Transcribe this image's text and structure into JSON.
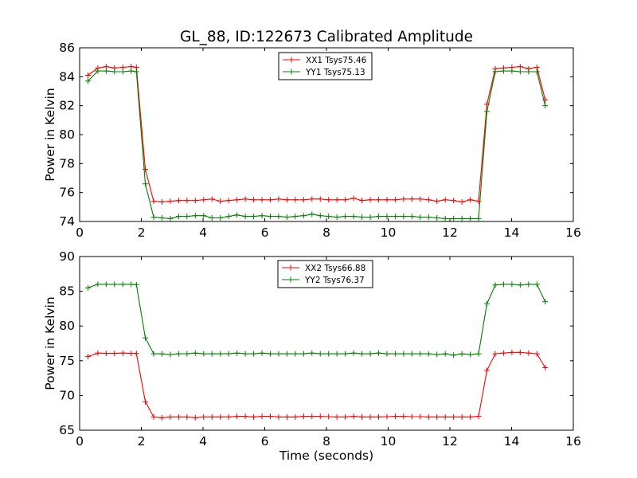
{
  "figure_title": "GL_88, ID:122673 Calibrated Amplitude",
  "chart_data": [
    {
      "type": "line",
      "xlabel": "",
      "ylabel": "Power in Kelvin",
      "xlim": [
        0,
        16
      ],
      "ylim": [
        74,
        86
      ],
      "xticks": [
        "0",
        "2",
        "4",
        "6",
        "8",
        "10",
        "12",
        "14",
        "16"
      ],
      "yticks": [
        "74",
        "76",
        "78",
        "80",
        "82",
        "84",
        "86"
      ],
      "grid": false,
      "legend_position": "top-center",
      "colors": {
        "XX1 Tsys75.46": "#ff0000",
        "YY1 Tsys75.13": "#008000"
      },
      "x": [
        0.27,
        0.59,
        0.86,
        1.13,
        1.4,
        1.67,
        1.84,
        2.13,
        2.4,
        2.67,
        2.94,
        3.21,
        3.48,
        3.75,
        4.02,
        4.29,
        4.56,
        4.83,
        5.1,
        5.37,
        5.64,
        5.91,
        6.18,
        6.45,
        6.72,
        6.99,
        7.26,
        7.53,
        7.8,
        8.07,
        8.34,
        8.61,
        8.88,
        9.15,
        9.42,
        9.69,
        9.96,
        10.23,
        10.5,
        10.77,
        11.04,
        11.31,
        11.58,
        11.85,
        12.12,
        12.39,
        12.66,
        12.93,
        13.2,
        13.47,
        13.74,
        14.01,
        14.28,
        14.55,
        14.82,
        15.09
      ],
      "series": [
        {
          "name": "XX1 Tsys75.46",
          "values": [
            84.1,
            84.6,
            84.7,
            84.6,
            84.65,
            84.7,
            84.65,
            77.6,
            75.4,
            75.35,
            75.4,
            75.45,
            75.45,
            75.45,
            75.5,
            75.55,
            75.4,
            75.45,
            75.5,
            75.55,
            75.5,
            75.5,
            75.5,
            75.55,
            75.5,
            75.5,
            75.5,
            75.55,
            75.55,
            75.5,
            75.5,
            75.5,
            75.6,
            75.45,
            75.5,
            75.5,
            75.5,
            75.5,
            75.55,
            75.55,
            75.55,
            75.5,
            75.4,
            75.5,
            75.45,
            75.35,
            75.5,
            75.4,
            82.1,
            84.55,
            84.6,
            84.65,
            84.7,
            84.55,
            84.65,
            82.4
          ]
        },
        {
          "name": "YY1 Tsys75.13",
          "values": [
            83.7,
            84.4,
            84.4,
            84.35,
            84.35,
            84.4,
            84.35,
            76.6,
            74.3,
            74.25,
            74.2,
            74.35,
            74.35,
            74.4,
            74.4,
            74.25,
            74.25,
            74.35,
            74.45,
            74.35,
            74.35,
            74.4,
            74.35,
            74.35,
            74.3,
            74.35,
            74.4,
            74.5,
            74.4,
            74.35,
            74.3,
            74.35,
            74.35,
            74.3,
            74.3,
            74.35,
            74.35,
            74.35,
            74.35,
            74.35,
            74.3,
            74.3,
            74.25,
            74.2,
            74.2,
            74.2,
            74.2,
            74.2,
            81.6,
            84.35,
            84.4,
            84.4,
            84.35,
            84.35,
            84.35,
            82.0
          ]
        }
      ]
    },
    {
      "type": "line",
      "xlabel": "Time (seconds)",
      "ylabel": "Power in Kelvin",
      "xlim": [
        0,
        16
      ],
      "ylim": [
        65,
        90
      ],
      "xticks": [
        "0",
        "2",
        "4",
        "6",
        "8",
        "10",
        "12",
        "14",
        "16"
      ],
      "yticks": [
        "65",
        "70",
        "75",
        "80",
        "85",
        "90"
      ],
      "grid": false,
      "legend_position": "top-center",
      "colors": {
        "XX2 Tsys66.88": "#ff0000",
        "YY2 Tsys76.37": "#008000"
      },
      "x": [
        0.27,
        0.59,
        0.86,
        1.13,
        1.4,
        1.67,
        1.84,
        2.13,
        2.4,
        2.67,
        2.94,
        3.21,
        3.48,
        3.75,
        4.02,
        4.29,
        4.56,
        4.83,
        5.1,
        5.37,
        5.64,
        5.91,
        6.18,
        6.45,
        6.72,
        6.99,
        7.26,
        7.53,
        7.8,
        8.07,
        8.34,
        8.61,
        8.88,
        9.15,
        9.42,
        9.69,
        9.96,
        10.23,
        10.5,
        10.77,
        11.04,
        11.31,
        11.58,
        11.85,
        12.12,
        12.39,
        12.66,
        12.93,
        13.2,
        13.47,
        13.74,
        14.01,
        14.28,
        14.55,
        14.82,
        15.09
      ],
      "series": [
        {
          "name": "XX2 Tsys66.88",
          "values": [
            75.6,
            76.1,
            76.05,
            76.05,
            76.1,
            76.05,
            76.05,
            69.1,
            66.9,
            66.8,
            66.9,
            66.9,
            66.9,
            66.8,
            66.9,
            66.9,
            66.9,
            66.9,
            67.0,
            67.0,
            66.9,
            67.0,
            67.0,
            66.9,
            66.9,
            66.9,
            67.0,
            67.0,
            67.0,
            66.95,
            66.9,
            66.9,
            67.0,
            66.9,
            66.9,
            66.9,
            66.95,
            67.0,
            67.0,
            66.95,
            66.95,
            66.9,
            66.9,
            66.9,
            66.9,
            66.9,
            66.9,
            67.0,
            73.6,
            76.0,
            76.1,
            76.2,
            76.2,
            76.1,
            76.0,
            74.0
          ]
        },
        {
          "name": "YY2 Tsys76.37",
          "values": [
            85.5,
            86.0,
            86.0,
            86.0,
            86.0,
            86.0,
            85.95,
            78.3,
            76.0,
            76.0,
            75.9,
            76.0,
            76.0,
            76.1,
            76.0,
            76.0,
            76.0,
            76.0,
            76.1,
            76.0,
            76.0,
            76.1,
            76.0,
            76.0,
            76.0,
            76.0,
            76.0,
            76.1,
            76.0,
            76.0,
            76.0,
            76.0,
            76.1,
            76.0,
            76.0,
            76.1,
            76.0,
            76.0,
            76.0,
            76.0,
            76.0,
            76.0,
            75.9,
            76.0,
            75.8,
            76.0,
            75.9,
            76.0,
            83.2,
            85.9,
            86.0,
            86.0,
            85.9,
            86.0,
            86.0,
            83.5
          ]
        }
      ]
    }
  ]
}
